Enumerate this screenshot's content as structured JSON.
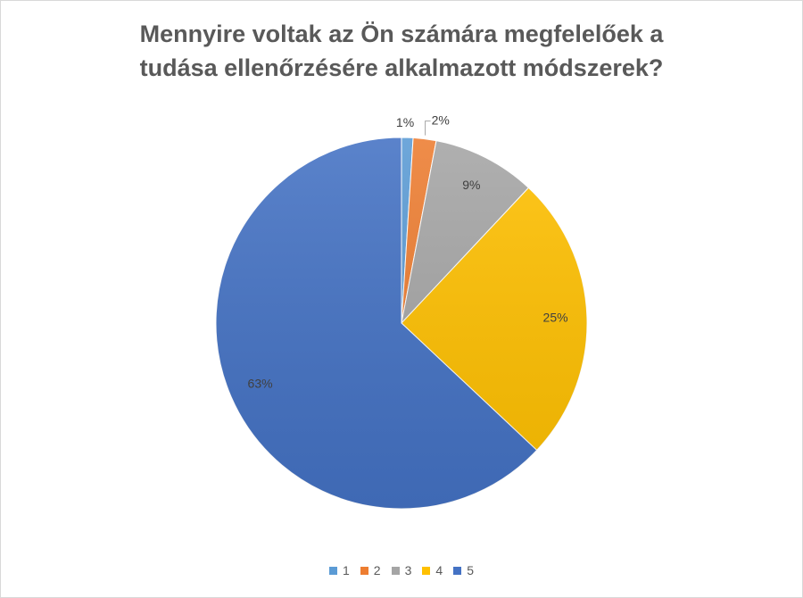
{
  "chart_data": {
    "type": "pie",
    "title_lines": [
      "Mennyire voltak az Ön számára megfelelőek a",
      "tudása ellenőrzésére alkalmazott módszerek?"
    ],
    "categories": [
      "1",
      "2",
      "3",
      "4",
      "5"
    ],
    "values": [
      1,
      2,
      9,
      25,
      63
    ],
    "labels": [
      "1%",
      "2%",
      "9%",
      "25%",
      "63%"
    ],
    "colors": [
      "#5B9BD5",
      "#ED7D31",
      "#A5A5A5",
      "#FFC000",
      "#4472C4"
    ],
    "legend_position": "bottom",
    "start_angle": "12 o'clock",
    "direction": "clockwise"
  }
}
